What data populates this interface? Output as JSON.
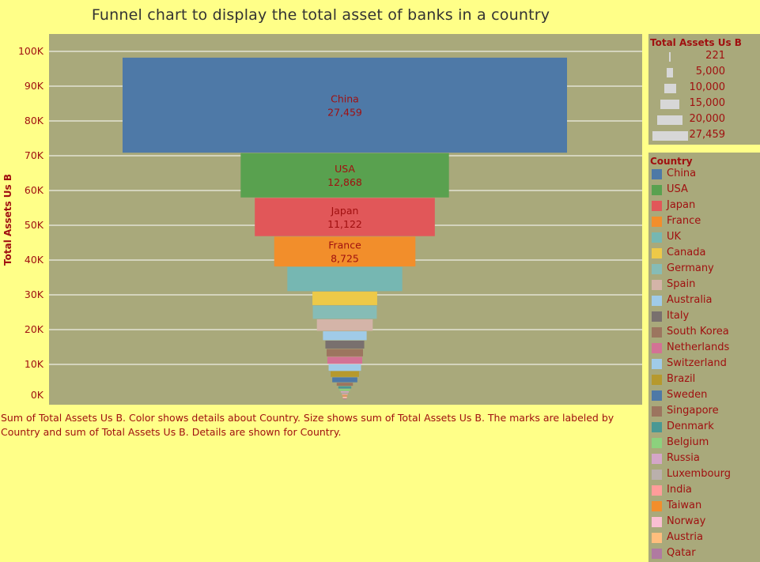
{
  "title": "Funnel chart to display the total asset of banks in a country",
  "caption": "Sum of Total Assets Us B.  Color shows details about Country.  Size shows sum of Total Assets Us B.  The marks are labeled by Country and sum of Total Assets Us B.  Details are shown for Country.",
  "size_legend": {
    "title": "Total Assets Us B",
    "items": [
      "221",
      "5,000",
      "10,000",
      "15,000",
      "20,000",
      "27,459"
    ]
  },
  "color_legend": {
    "title": "Country"
  },
  "chart_data": {
    "type": "bar",
    "subtype": "funnel",
    "ylabel": "Total Assets Us B",
    "xlabel": "",
    "ylim": [
      0,
      102000
    ],
    "yticks": [
      "100K",
      "90K",
      "80K",
      "70K",
      "60K",
      "50K",
      "40K",
      "30K",
      "20K",
      "10K",
      "0K"
    ],
    "grid": true,
    "legend_position": "right",
    "series": [
      {
        "name": "China",
        "value": 27459,
        "color": "#4e79a7",
        "label": true
      },
      {
        "name": "USA",
        "value": 12868,
        "color": "#59a14f",
        "label": true
      },
      {
        "name": "Japan",
        "value": 11122,
        "color": "#e15759",
        "label": true
      },
      {
        "name": "France",
        "value": 8725,
        "color": "#f28e2b",
        "label": true
      },
      {
        "name": "UK",
        "value": 7100,
        "color": "#76b7b2",
        "label": false
      },
      {
        "name": "Canada",
        "value": 4000,
        "color": "#edc948",
        "label": false
      },
      {
        "name": "Germany",
        "value": 3950,
        "color": "#86bcb6",
        "label": false
      },
      {
        "name": "Spain",
        "value": 3450,
        "color": "#d4b4a8",
        "label": false
      },
      {
        "name": "Australia",
        "value": 2700,
        "color": "#a0cbe8",
        "label": false
      },
      {
        "name": "Italy",
        "value": 2400,
        "color": "#79706e",
        "label": false
      },
      {
        "name": "South Korea",
        "value": 2250,
        "color": "#9c755f",
        "label": false
      },
      {
        "name": "Netherlands",
        "value": 2150,
        "color": "#d37295",
        "label": false
      },
      {
        "name": "Switzerland",
        "value": 2000,
        "color": "#a0cbe8",
        "label": false
      },
      {
        "name": "Brazil",
        "value": 1750,
        "color": "#b6992d",
        "label": false
      },
      {
        "name": "Sweden",
        "value": 1550,
        "color": "#4e79a7",
        "label": false
      },
      {
        "name": "Singapore",
        "value": 1000,
        "color": "#9c755f",
        "label": false
      },
      {
        "name": "Denmark",
        "value": 800,
        "color": "#499894",
        "label": false
      },
      {
        "name": "Belgium",
        "value": 650,
        "color": "#8cd17d",
        "label": false
      },
      {
        "name": "Russia",
        "value": 500,
        "color": "#d4a6c8",
        "label": false
      },
      {
        "name": "Luxembourg",
        "value": 400,
        "color": "#bab0ac",
        "label": false
      },
      {
        "name": "India",
        "value": 350,
        "color": "#ff9d9a",
        "label": false
      },
      {
        "name": "Taiwan",
        "value": 300,
        "color": "#f28e2b",
        "label": false
      },
      {
        "name": "Norway",
        "value": 260,
        "color": "#fabfd2",
        "label": false
      },
      {
        "name": "Austria",
        "value": 240,
        "color": "#ffbe7d",
        "label": false
      },
      {
        "name": "Qatar",
        "value": 221,
        "color": "#b07aa1",
        "label": false
      }
    ]
  }
}
